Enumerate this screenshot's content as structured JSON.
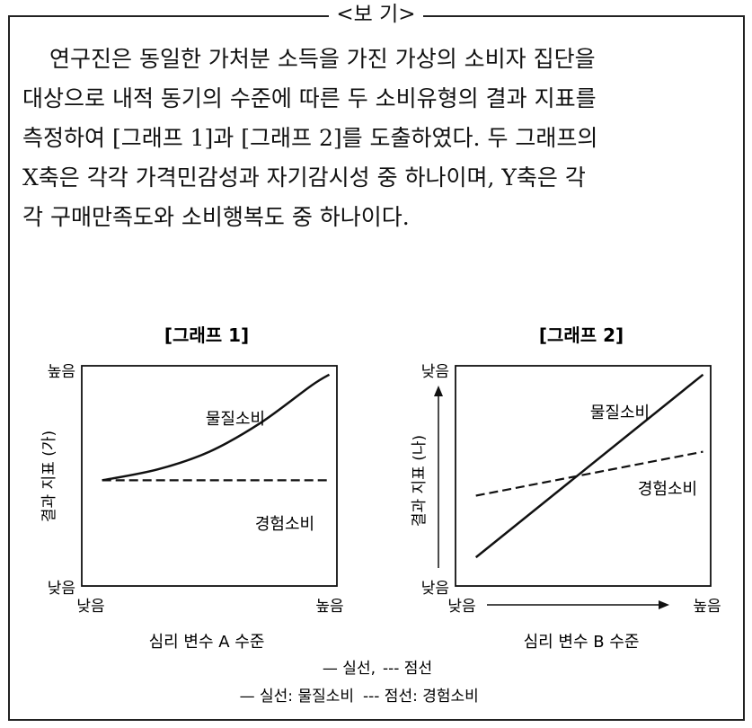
{
  "box_title": "<보  기>",
  "paragraph_lines": [
    "연구진은 동일한 가처분 소득을 가진 가상의 소비자 집단을",
    "대상으로 내적 동기의 수준에 따른 두 소비유형의 결과 지표를",
    "측정하여 [그래프 1]과 [그래프 2]를 도출하였다. 두 그래프의",
    "X축은 각각 가격민감성과 자기감시성 중 하나이며, Y축은 각",
    "각 구매만족도와 소비행복도 중 하나이다."
  ],
  "chart_data": [
    {
      "type": "line",
      "title": "[그래프 1]",
      "xlabel": "심리 변수 A 수준",
      "ylabel": "결과 지표 (가)",
      "x_tick_labels": [
        "낮음",
        "높음"
      ],
      "y_tick_labels": [
        "낮음",
        "높음"
      ],
      "xlim": [
        0,
        1
      ],
      "ylim": [
        0,
        1
      ],
      "series": [
        {
          "name": "물질소비",
          "style": "solid",
          "x": [
            0.08,
            0.3,
            0.5,
            0.7,
            0.9,
            0.97
          ],
          "y": [
            0.48,
            0.53,
            0.61,
            0.74,
            0.91,
            0.96
          ]
        },
        {
          "name": "경험소비",
          "style": "dashed",
          "x": [
            0.08,
            0.97
          ],
          "y": [
            0.48,
            0.48
          ]
        }
      ]
    },
    {
      "type": "line",
      "title": "[그래프 2]",
      "xlabel": "심리 변수 B 수준",
      "ylabel": "결과 지표 (나)",
      "x_tick_labels": [
        "낮음",
        "높음"
      ],
      "y_tick_labels": [
        "낮음",
        "낮음"
      ],
      "xlim": [
        0,
        1
      ],
      "ylim": [
        0,
        1
      ],
      "series": [
        {
          "name": "물질소비",
          "style": "solid",
          "x": [
            0.08,
            0.97
          ],
          "y": [
            0.13,
            0.96
          ]
        },
        {
          "name": "경험소비",
          "style": "dashed",
          "x": [
            0.08,
            0.97
          ],
          "y": [
            0.41,
            0.61
          ]
        }
      ]
    }
  ],
  "legend_lines": [
    {
      "solid": "— 실선,",
      "dashed": "--- 점선"
    },
    {
      "solid": "— 실선: 물질소비",
      "dashed": "--- 점선: 경험소비"
    }
  ]
}
